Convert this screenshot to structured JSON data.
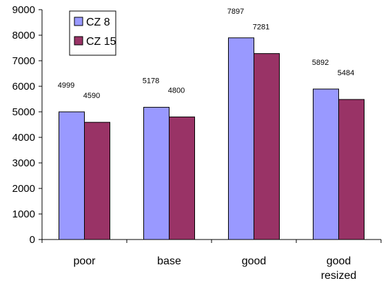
{
  "chart_data": {
    "type": "bar",
    "categories": [
      [
        "poor"
      ],
      [
        "base"
      ],
      [
        "good"
      ],
      [
        "good",
        "resized"
      ]
    ],
    "series": [
      {
        "name": "CZ 8",
        "values": [
          4999,
          5178,
          7897,
          5892
        ],
        "color": "#9999FF"
      },
      {
        "name": "CZ 15",
        "values": [
          4590,
          4800,
          7281,
          5484
        ],
        "color": "#993366"
      }
    ],
    "ylim": [
      0,
      9000
    ],
    "yticks": [
      0,
      1000,
      2000,
      3000,
      4000,
      5000,
      6000,
      7000,
      8000,
      9000
    ],
    "grid": false,
    "legend_position": "top-left"
  }
}
